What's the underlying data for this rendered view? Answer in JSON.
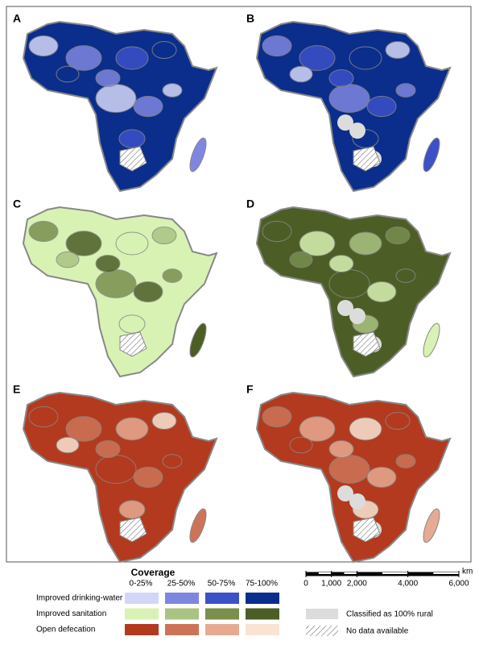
{
  "panels": [
    {
      "label": "A"
    },
    {
      "label": "B"
    },
    {
      "label": "C"
    },
    {
      "label": "D"
    },
    {
      "label": "E"
    },
    {
      "label": "F"
    }
  ],
  "legend": {
    "title": "Coverage",
    "classes": [
      "0-25%",
      "25-50%",
      "50-75%",
      "75-100%"
    ],
    "rows": [
      {
        "label": "Improved drinking-water",
        "colors": [
          "#d4d6f7",
          "#7f86e0",
          "#3c50c8",
          "#0b2e8c"
        ]
      },
      {
        "label": "Improved sanitation",
        "colors": [
          "#d8f2b4",
          "#a9c482",
          "#788f4e",
          "#4c5e26"
        ]
      },
      {
        "label": "Open defecation",
        "colors": [
          "#b33a1e",
          "#cd7458",
          "#e6aa92",
          "#f9e4d4"
        ]
      }
    ],
    "other": [
      {
        "label": "Classified as 100% rural",
        "color": "#dcdcdc"
      },
      {
        "label": "No data available"
      }
    ]
  },
  "scale_bar": {
    "unit": "km",
    "ticks": [
      0,
      {
        "value": 1000,
        "label": "1,000"
      },
      {
        "value": 2000,
        "label": "2,000"
      },
      {
        "value": 4000,
        "label": "4,000"
      },
      {
        "value": 6000,
        "label": "6,000"
      }
    ]
  }
}
